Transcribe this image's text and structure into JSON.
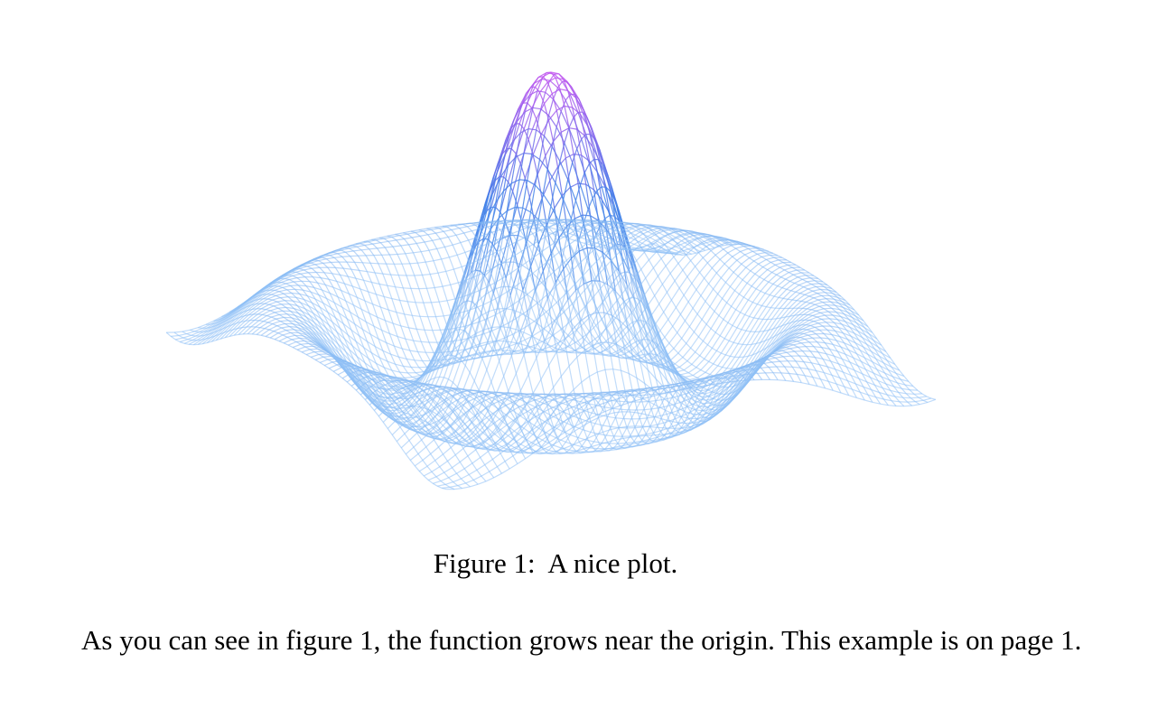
{
  "figure": {
    "caption_label": "Figure 1:",
    "caption_text": "A nice plot.",
    "plot": {
      "type": "surface-wireframe",
      "color_low": "#8ec0f5",
      "color_mid": "#3f7fe8",
      "color_high": "#c455f0"
    }
  },
  "body": {
    "paragraph": "As you can see in figure 1, the function grows near the origin. This example is on page 1."
  }
}
